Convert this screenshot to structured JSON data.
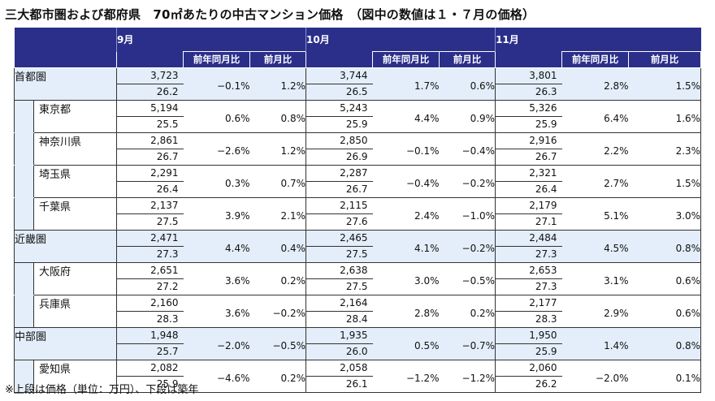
{
  "title": "三大都市圏および都府県　70㎡あたりの中古マンション価格　（図中の数値は１・７月の価格）",
  "months": [
    "9月",
    "10月",
    "11月"
  ],
  "subheaders": {
    "yoy": "前年同月比",
    "mom": "前月比"
  },
  "rows": [
    {
      "name": "首都圏",
      "level": "region",
      "data": [
        {
          "price": "3,723",
          "age": "26.2",
          "yoy": "−0.1%",
          "mom": "1.2%"
        },
        {
          "price": "3,744",
          "age": "26.5",
          "yoy": "1.7%",
          "mom": "0.6%"
        },
        {
          "price": "3,801",
          "age": "26.3",
          "yoy": "2.8%",
          "mom": "1.5%"
        }
      ]
    },
    {
      "name": "東京都",
      "level": "sub",
      "data": [
        {
          "price": "5,194",
          "age": "25.5",
          "yoy": "0.6%",
          "mom": "0.8%"
        },
        {
          "price": "5,243",
          "age": "25.9",
          "yoy": "4.4%",
          "mom": "0.9%"
        },
        {
          "price": "5,326",
          "age": "25.9",
          "yoy": "6.4%",
          "mom": "1.6%"
        }
      ]
    },
    {
      "name": "神奈川県",
      "level": "sub",
      "data": [
        {
          "price": "2,861",
          "age": "26.7",
          "yoy": "−2.6%",
          "mom": "1.2%"
        },
        {
          "price": "2,850",
          "age": "26.9",
          "yoy": "−0.1%",
          "mom": "−0.4%"
        },
        {
          "price": "2,916",
          "age": "26.7",
          "yoy": "2.2%",
          "mom": "2.3%"
        }
      ]
    },
    {
      "name": "埼玉県",
      "level": "sub",
      "data": [
        {
          "price": "2,291",
          "age": "26.4",
          "yoy": "0.3%",
          "mom": "0.7%"
        },
        {
          "price": "2,287",
          "age": "26.7",
          "yoy": "−0.4%",
          "mom": "−0.2%"
        },
        {
          "price": "2,321",
          "age": "26.4",
          "yoy": "2.7%",
          "mom": "1.5%"
        }
      ]
    },
    {
      "name": "千葉県",
      "level": "sub",
      "data": [
        {
          "price": "2,137",
          "age": "27.5",
          "yoy": "3.9%",
          "mom": "2.1%"
        },
        {
          "price": "2,115",
          "age": "27.6",
          "yoy": "2.4%",
          "mom": "−1.0%"
        },
        {
          "price": "2,179",
          "age": "27.1",
          "yoy": "5.1%",
          "mom": "3.0%"
        }
      ]
    },
    {
      "name": "近畿圏",
      "level": "region",
      "data": [
        {
          "price": "2,471",
          "age": "27.3",
          "yoy": "4.4%",
          "mom": "0.4%"
        },
        {
          "price": "2,465",
          "age": "27.5",
          "yoy": "4.1%",
          "mom": "−0.2%"
        },
        {
          "price": "2,484",
          "age": "27.3",
          "yoy": "4.5%",
          "mom": "0.8%"
        }
      ]
    },
    {
      "name": "大阪府",
      "level": "sub",
      "data": [
        {
          "price": "2,651",
          "age": "27.2",
          "yoy": "3.6%",
          "mom": "0.2%"
        },
        {
          "price": "2,638",
          "age": "27.5",
          "yoy": "3.0%",
          "mom": "−0.5%"
        },
        {
          "price": "2,653",
          "age": "27.3",
          "yoy": "3.1%",
          "mom": "0.6%"
        }
      ]
    },
    {
      "name": "兵庫県",
      "level": "sub",
      "data": [
        {
          "price": "2,160",
          "age": "28.3",
          "yoy": "3.6%",
          "mom": "−0.2%"
        },
        {
          "price": "2,164",
          "age": "28.4",
          "yoy": "2.8%",
          "mom": "0.2%"
        },
        {
          "price": "2,177",
          "age": "28.3",
          "yoy": "2.9%",
          "mom": "0.6%"
        }
      ]
    },
    {
      "name": "中部圏",
      "level": "region",
      "data": [
        {
          "price": "1,948",
          "age": "25.7",
          "yoy": "−2.0%",
          "mom": "−0.5%"
        },
        {
          "price": "1,935",
          "age": "26.0",
          "yoy": "0.5%",
          "mom": "−0.7%"
        },
        {
          "price": "1,950",
          "age": "25.9",
          "yoy": "1.4%",
          "mom": "0.8%"
        }
      ]
    },
    {
      "name": "愛知県",
      "level": "sub",
      "data": [
        {
          "price": "2,082",
          "age": "25.9",
          "yoy": "−4.6%",
          "mom": "0.2%"
        },
        {
          "price": "2,058",
          "age": "26.1",
          "yoy": "−1.2%",
          "mom": "−1.2%"
        },
        {
          "price": "2,060",
          "age": "26.2",
          "yoy": "−2.0%",
          "mom": "0.1%"
        }
      ]
    }
  ],
  "footnote": "※上段は価格（単位：万円）、下段は築年",
  "colors": {
    "header_bg": "#2b2f8a",
    "header_text": "#ffffff",
    "region_bg": "#e3eefa"
  }
}
